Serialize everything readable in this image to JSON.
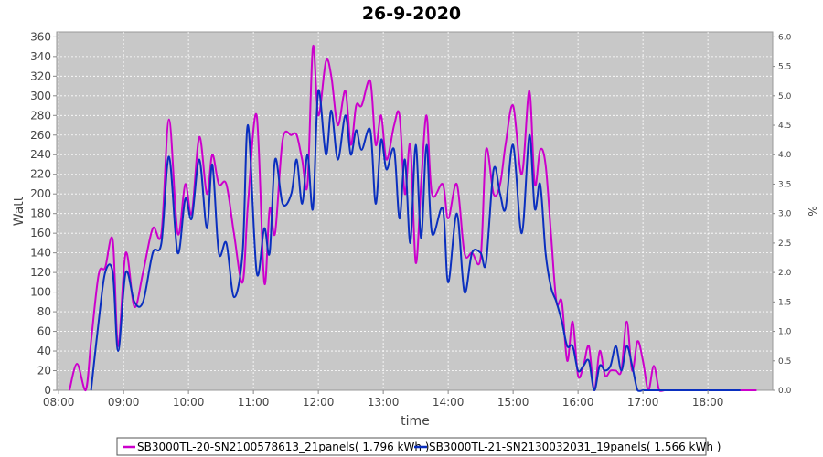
{
  "chart_data": {
    "type": "line",
    "title": "26-9-2020",
    "xlabel": "time",
    "ylabel": "Watt",
    "y2label": "%",
    "x_ticks": [
      "08:00",
      "09:00",
      "10:00",
      "11:00",
      "12:00",
      "13:00",
      "14:00",
      "15:00",
      "16:00",
      "17:00",
      "18:00"
    ],
    "y_ticks": [
      "0",
      "20",
      "40",
      "60",
      "80",
      "100",
      "120",
      "140",
      "160",
      "180",
      "200",
      "220",
      "240",
      "260",
      "280",
      "300",
      "320",
      "340",
      "360"
    ],
    "y2_ticks": [
      "0.0",
      "0.5",
      "1.0",
      "1.5",
      "2.0",
      "2.5",
      "3.0",
      "3.5",
      "4.0",
      "4.5",
      "5.0",
      "5.5",
      "6.0"
    ],
    "ylim": [
      0,
      365
    ],
    "grid": true,
    "legend_position": "bottom",
    "series": [
      {
        "name": "SB3000TL-20-SN2100578613_21panels( 1.796 kWh )",
        "color": "#cc00cc",
        "x": [
          "08:10",
          "08:17",
          "08:25",
          "08:30",
          "08:37",
          "08:43",
          "08:50",
          "08:55",
          "09:02",
          "09:10",
          "09:18",
          "09:27",
          "09:35",
          "09:42",
          "09:50",
          "09:57",
          "10:03",
          "10:10",
          "10:17",
          "10:22",
          "10:28",
          "10:35",
          "10:42",
          "10:50",
          "10:55",
          "11:03",
          "11:10",
          "11:15",
          "11:20",
          "11:27",
          "11:35",
          "11:40",
          "11:45",
          "11:50",
          "11:55",
          "12:00",
          "12:07",
          "12:12",
          "12:18",
          "12:25",
          "12:30",
          "12:35",
          "12:40",
          "12:48",
          "12:53",
          "12:58",
          "13:03",
          "13:10",
          "13:15",
          "13:20",
          "13:25",
          "13:30",
          "13:35",
          "13:40",
          "13:45",
          "13:55",
          "14:00",
          "14:08",
          "14:15",
          "14:22",
          "14:30",
          "14:35",
          "14:42",
          "14:48",
          "14:53",
          "15:00",
          "15:08",
          "15:15",
          "15:20",
          "15:25",
          "15:30",
          "15:35",
          "15:40",
          "15:45",
          "15:50",
          "15:55",
          "16:00",
          "16:05",
          "16:10",
          "16:15",
          "16:20",
          "16:25",
          "16:30",
          "16:35",
          "16:40",
          "16:45",
          "16:50",
          "16:55",
          "17:00",
          "17:05",
          "17:10",
          "17:15",
          "17:20",
          "17:25",
          "17:30",
          "17:35",
          "17:40",
          "17:45",
          "17:50",
          "17:55",
          "18:00",
          "18:05",
          "18:10",
          "18:15",
          "18:20",
          "18:25",
          "18:30",
          "18:35",
          "18:40",
          "18:45"
        ],
        "y": [
          0,
          27,
          0,
          50,
          118,
          125,
          153,
          45,
          140,
          85,
          120,
          165,
          160,
          276,
          160,
          210,
          180,
          258,
          200,
          240,
          210,
          210,
          160,
          110,
          190,
          280,
          110,
          185,
          160,
          255,
          260,
          260,
          235,
          210,
          350,
          280,
          335,
          320,
          270,
          305,
          250,
          290,
          290,
          315,
          250,
          280,
          235,
          270,
          280,
          200,
          250,
          130,
          210,
          280,
          200,
          210,
          175,
          210,
          140,
          140,
          135,
          245,
          200,
          210,
          250,
          290,
          220,
          305,
          210,
          245,
          230,
          160,
          90,
          90,
          30,
          70,
          15,
          25,
          45,
          0,
          40,
          15,
          20,
          20,
          20,
          70,
          20,
          50,
          30,
          0,
          25,
          0,
          0,
          0,
          0,
          0,
          0,
          0,
          0,
          0,
          0,
          0,
          0,
          0,
          0,
          0,
          0,
          0,
          0,
          0
        ]
      },
      {
        "name": "SB3000TL-21-SN2130032031_19panels( 1.566 kWh )",
        "color": "#0a2fbf",
        "x": [
          "08:30",
          "08:37",
          "08:43",
          "08:50",
          "08:55",
          "09:02",
          "09:10",
          "09:18",
          "09:27",
          "09:35",
          "09:42",
          "09:50",
          "09:57",
          "10:03",
          "10:10",
          "10:17",
          "10:22",
          "10:28",
          "10:35",
          "10:42",
          "10:50",
          "10:55",
          "11:03",
          "11:10",
          "11:15",
          "11:20",
          "11:27",
          "11:35",
          "11:40",
          "11:45",
          "11:50",
          "11:55",
          "12:00",
          "12:07",
          "12:12",
          "12:18",
          "12:25",
          "12:30",
          "12:35",
          "12:40",
          "12:48",
          "12:53",
          "12:58",
          "13:03",
          "13:10",
          "13:15",
          "13:20",
          "13:25",
          "13:30",
          "13:35",
          "13:40",
          "13:45",
          "13:55",
          "14:00",
          "14:08",
          "14:15",
          "14:22",
          "14:30",
          "14:35",
          "14:42",
          "14:48",
          "14:53",
          "15:00",
          "15:08",
          "15:15",
          "15:20",
          "15:25",
          "15:30",
          "15:35",
          "15:40",
          "15:45",
          "15:50",
          "15:55",
          "16:00",
          "16:05",
          "16:10",
          "16:15",
          "16:20",
          "16:25",
          "16:30",
          "16:35",
          "16:40",
          "16:45",
          "16:50",
          "16:55",
          "17:00",
          "17:05",
          "17:10",
          "17:15",
          "17:20",
          "17:25",
          "17:30",
          "17:35",
          "17:40",
          "17:45",
          "17:50",
          "17:55",
          "18:00",
          "18:05",
          "18:10",
          "18:15",
          "18:20",
          "18:25",
          "18:30"
        ],
        "y": [
          0,
          70,
          120,
          120,
          40,
          120,
          90,
          90,
          140,
          150,
          238,
          140,
          195,
          175,
          235,
          165,
          230,
          140,
          150,
          95,
          140,
          270,
          120,
          165,
          140,
          235,
          190,
          200,
          235,
          190,
          240,
          185,
          305,
          240,
          285,
          235,
          280,
          240,
          265,
          245,
          265,
          190,
          255,
          225,
          245,
          175,
          235,
          150,
          250,
          155,
          250,
          160,
          185,
          110,
          180,
          100,
          140,
          140,
          130,
          225,
          200,
          185,
          250,
          160,
          260,
          185,
          210,
          140,
          105,
          90,
          70,
          45,
          45,
          20,
          25,
          30,
          0,
          25,
          20,
          25,
          45,
          20,
          45,
          25,
          0,
          0,
          0,
          0,
          0,
          0,
          0,
          0,
          0,
          0,
          0,
          0,
          0,
          0,
          0,
          0,
          0,
          0,
          0,
          0
        ]
      }
    ]
  }
}
